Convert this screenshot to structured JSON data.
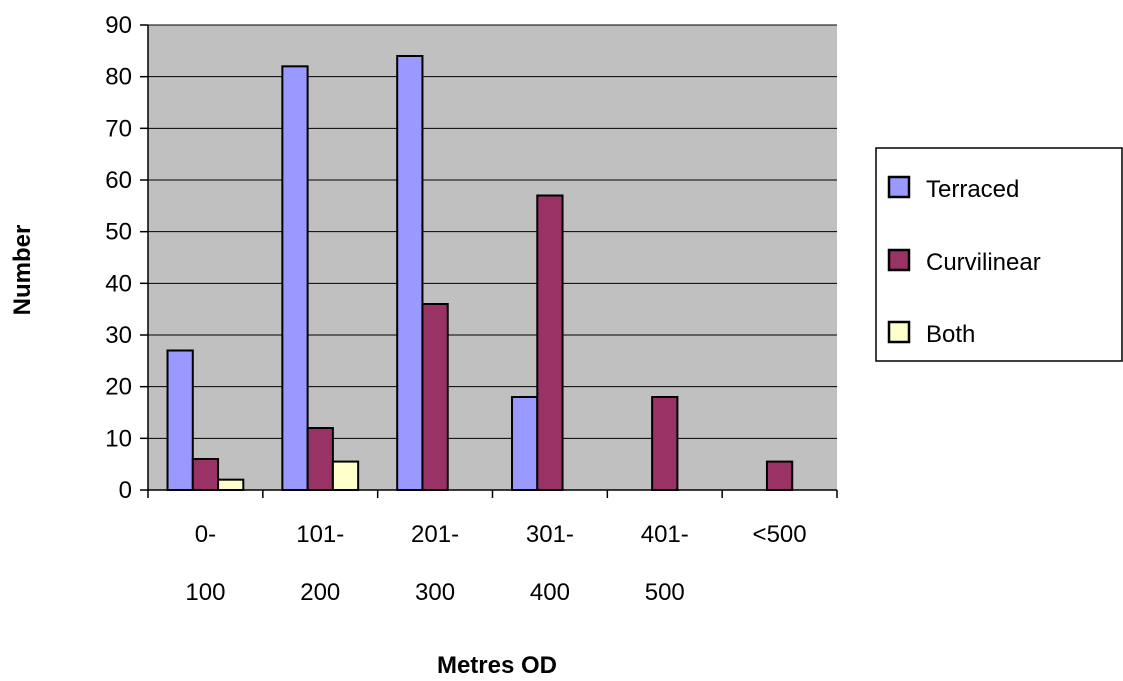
{
  "chart_data": {
    "type": "bar",
    "title": "",
    "xlabel": "Metres OD",
    "ylabel": "Number",
    "ylim": [
      0,
      90
    ],
    "yticks": [
      0,
      10,
      20,
      30,
      40,
      50,
      60,
      70,
      80,
      90
    ],
    "grid": true,
    "legend_position": "right",
    "categories": [
      {
        "line1": "0-",
        "line2": "100"
      },
      {
        "line1": "101-",
        "line2": "200"
      },
      {
        "line1": "201-",
        "line2": "300"
      },
      {
        "line1": "301-",
        "line2": "400"
      },
      {
        "line1": "401-",
        "line2": "500"
      },
      {
        "line1": "<500",
        "line2": ""
      }
    ],
    "series": [
      {
        "name": "Terraced",
        "color": "#9999ff",
        "values": [
          27,
          82,
          84,
          18,
          0,
          0
        ]
      },
      {
        "name": "Curvilinear",
        "color": "#993366",
        "values": [
          6,
          12,
          36,
          57,
          18,
          5.5
        ]
      },
      {
        "name": "Both",
        "color": "#ffffcc",
        "values": [
          2,
          5.5,
          0,
          0,
          0,
          0
        ]
      }
    ],
    "plot_background": "#c0c0c0"
  }
}
